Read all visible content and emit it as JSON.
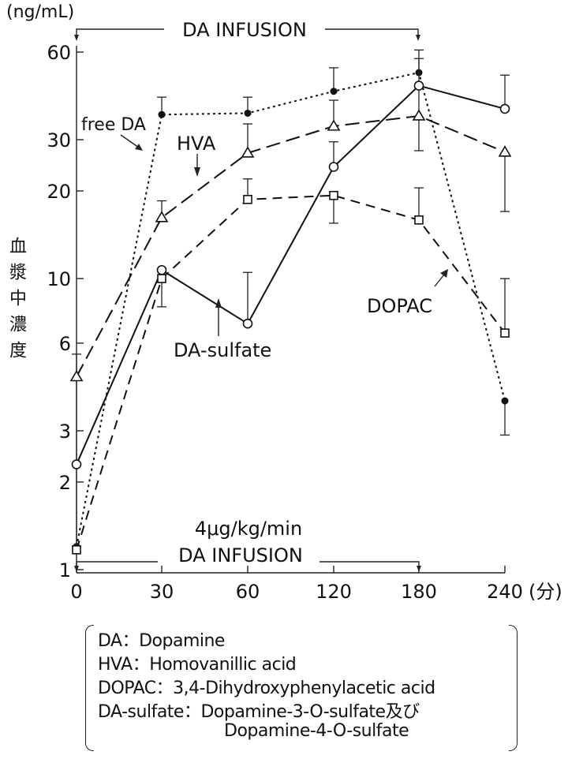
{
  "chart_data": {
    "type": "line",
    "yscale": "log",
    "ylabel_unit": "(ng/mL)",
    "ylabel": "血漿中濃度",
    "xlabel_unit": "(分)",
    "categories": [
      "0",
      "30",
      "60",
      "120",
      "180",
      "240"
    ],
    "yticks": [
      1,
      2,
      3,
      6,
      10,
      20,
      30,
      60
    ],
    "ylim": [
      1,
      60
    ],
    "series": [
      {
        "name": "free DA",
        "marker": "filled-circle",
        "line": "dotted",
        "values": [
          1.2,
          36.6,
          37,
          44,
          51,
          3.8
        ],
        "err": [
          null,
          [
            36.6,
            42
          ],
          [
            37,
            42
          ],
          [
            44,
            53
          ],
          [
            51,
            57
          ],
          [
            2.9,
            3.8
          ]
        ]
      },
      {
        "name": "HVA",
        "marker": "triangle",
        "line": "long-dash",
        "values": [
          4.6,
          16.2,
          27,
          33.4,
          36.2,
          27.2
        ],
        "err": [
          [
            1.2,
            5.5
          ],
          [
            16.2,
            18.5
          ],
          [
            27,
            34
          ],
          [
            33.4,
            41
          ],
          [
            27.5,
            61
          ],
          [
            17,
            27.2
          ]
        ]
      },
      {
        "name": "DA-sulfate",
        "marker": "open-circle",
        "line": "solid",
        "values": [
          2.3,
          10.7,
          7.0,
          24.2,
          46,
          38.3
        ],
        "err": [
          null,
          null,
          [
            7.0,
            10.5
          ],
          [
            24.2,
            29.5
          ],
          null,
          [
            38.3,
            50
          ]
        ]
      },
      {
        "name": "DOPAC",
        "marker": "square",
        "line": "short-dash",
        "values": [
          1.17,
          10,
          18.7,
          19.3,
          15.9,
          6.5
        ],
        "err": [
          null,
          [
            8,
            10
          ],
          [
            18.7,
            22
          ],
          [
            15.5,
            19.3
          ],
          [
            15.9,
            20.5
          ],
          [
            6.5,
            10
          ]
        ]
      }
    ],
    "annotations": {
      "top_infusion": "DA  INFUSION",
      "bottom_rate": "4μg/kg/min",
      "bottom_infusion": "DA  INFUSION",
      "label_free_da": "free DA",
      "label_hva": "HVA",
      "label_da_sulfate": "DA-sulfate",
      "label_dopac": "DOPAC"
    },
    "legend": [
      "DA：Dopamine",
      "HVA：Homovanillic acid",
      "DOPAC：3,4-Dihydroxyphenylacetic acid",
      "DA-sulfate：Dopamine-3-O-sulfate及び",
      "Dopamine-4-O-sulfate"
    ]
  }
}
